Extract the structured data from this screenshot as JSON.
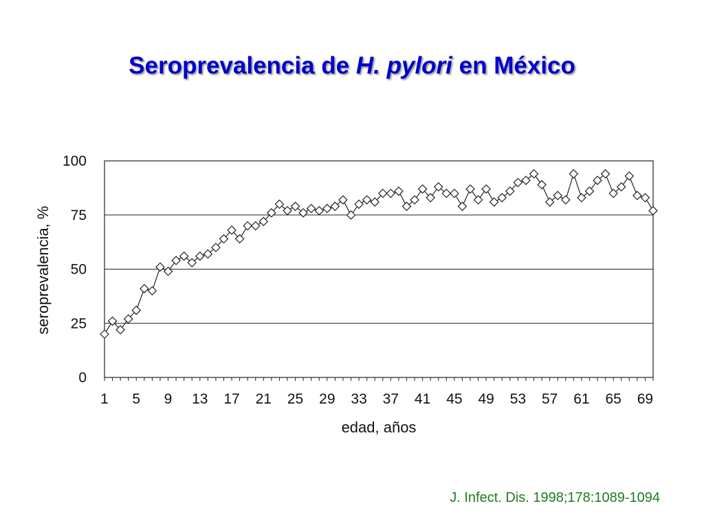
{
  "title": {
    "prefix": "Seroprevalencia de ",
    "italic": "H. pylori",
    "suffix": " en México",
    "color": "#0000cc"
  },
  "citation": {
    "text": "J. Infect. Dis. 1998;178:1089-1094",
    "color": "#1f7a1f"
  },
  "chart_data": {
    "type": "line",
    "title": "",
    "xlabel": "edad, años",
    "ylabel": "seroprevalencia, %",
    "ylim": [
      0,
      100
    ],
    "xlim": [
      1,
      70
    ],
    "yticks": [
      0,
      25,
      50,
      75,
      100
    ],
    "xticks": [
      1,
      5,
      9,
      13,
      17,
      21,
      25,
      29,
      33,
      37,
      41,
      45,
      49,
      53,
      57,
      61,
      65,
      69
    ],
    "grid": "horizontal",
    "marker": "diamond-open",
    "series": [
      {
        "x": [
          1,
          2,
          3,
          4,
          5,
          6,
          7,
          8,
          9,
          10,
          11,
          12,
          13,
          14,
          15,
          16,
          17,
          18,
          19,
          20,
          21,
          22,
          23,
          24,
          25,
          26,
          27,
          28,
          29,
          30,
          31,
          32,
          33,
          34,
          35,
          36,
          37,
          38,
          39,
          40,
          41,
          42,
          43,
          44,
          45,
          46,
          47,
          48,
          49,
          50,
          51,
          52,
          53,
          54,
          55,
          56,
          57,
          58,
          59,
          60,
          61,
          62,
          63,
          64,
          65,
          66,
          67,
          68,
          69,
          70
        ],
        "values": [
          20,
          26,
          22,
          27,
          31,
          41,
          40,
          51,
          49,
          54,
          56,
          53,
          56,
          57,
          60,
          64,
          68,
          64,
          70,
          70,
          72,
          76,
          80,
          77,
          79,
          76,
          78,
          77,
          78,
          79,
          82,
          75,
          80,
          82,
          81,
          85,
          85,
          86,
          79,
          82,
          87,
          83,
          88,
          85,
          85,
          79,
          87,
          82,
          87,
          81,
          83,
          86,
          90,
          91,
          94,
          89,
          81,
          84,
          82,
          94,
          83,
          86,
          91,
          94,
          85,
          88,
          93,
          84,
          83,
          77
        ]
      }
    ]
  }
}
